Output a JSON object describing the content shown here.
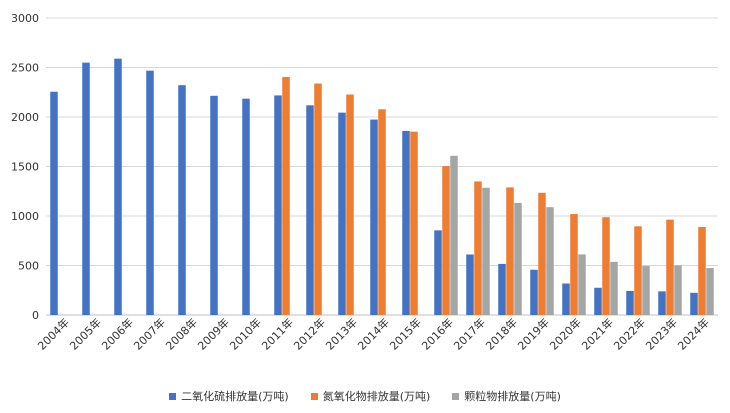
{
  "chart_data": {
    "type": "bar",
    "categories": [
      "2004年",
      "2005年",
      "2006年",
      "2007年",
      "2008年",
      "2009年",
      "2010年",
      "2011年",
      "2012年",
      "2013年",
      "2014年",
      "2015年",
      "2016年",
      "2017年",
      "2018年",
      "2019年",
      "2020年",
      "2021年",
      "2022年",
      "2023年",
      "2024年"
    ],
    "series": [
      {
        "name": "二氧化硫排放量(万吨)",
        "color": "#4472c4",
        "values": [
          2255,
          2549,
          2589,
          2468,
          2321,
          2214,
          2185,
          2218,
          2118,
          2044,
          1974,
          1859,
          855,
          611,
          516,
          457,
          318,
          275,
          243,
          239,
          224
        ]
      },
      {
        "name": "氮氧化物排放量(万吨)",
        "color": "#ed7d31",
        "values": [
          null,
          null,
          null,
          null,
          null,
          null,
          null,
          2404,
          2338,
          2227,
          2078,
          1852,
          1504,
          1349,
          1289,
          1234,
          1020,
          988,
          896,
          963,
          889
        ]
      },
      {
        "name": "颗粒物排放量(万吨)",
        "color": "#a5a5a5",
        "values": [
          null,
          null,
          null,
          null,
          null,
          null,
          null,
          null,
          null,
          null,
          null,
          null,
          1608,
          1285,
          1132,
          1089,
          612,
          537,
          496,
          501,
          474
        ]
      }
    ],
    "ylim": [
      0,
      3000
    ],
    "yticks": [
      0,
      500,
      1000,
      1500,
      2000,
      2500,
      3000
    ],
    "grid": true,
    "legend": "bottom"
  }
}
